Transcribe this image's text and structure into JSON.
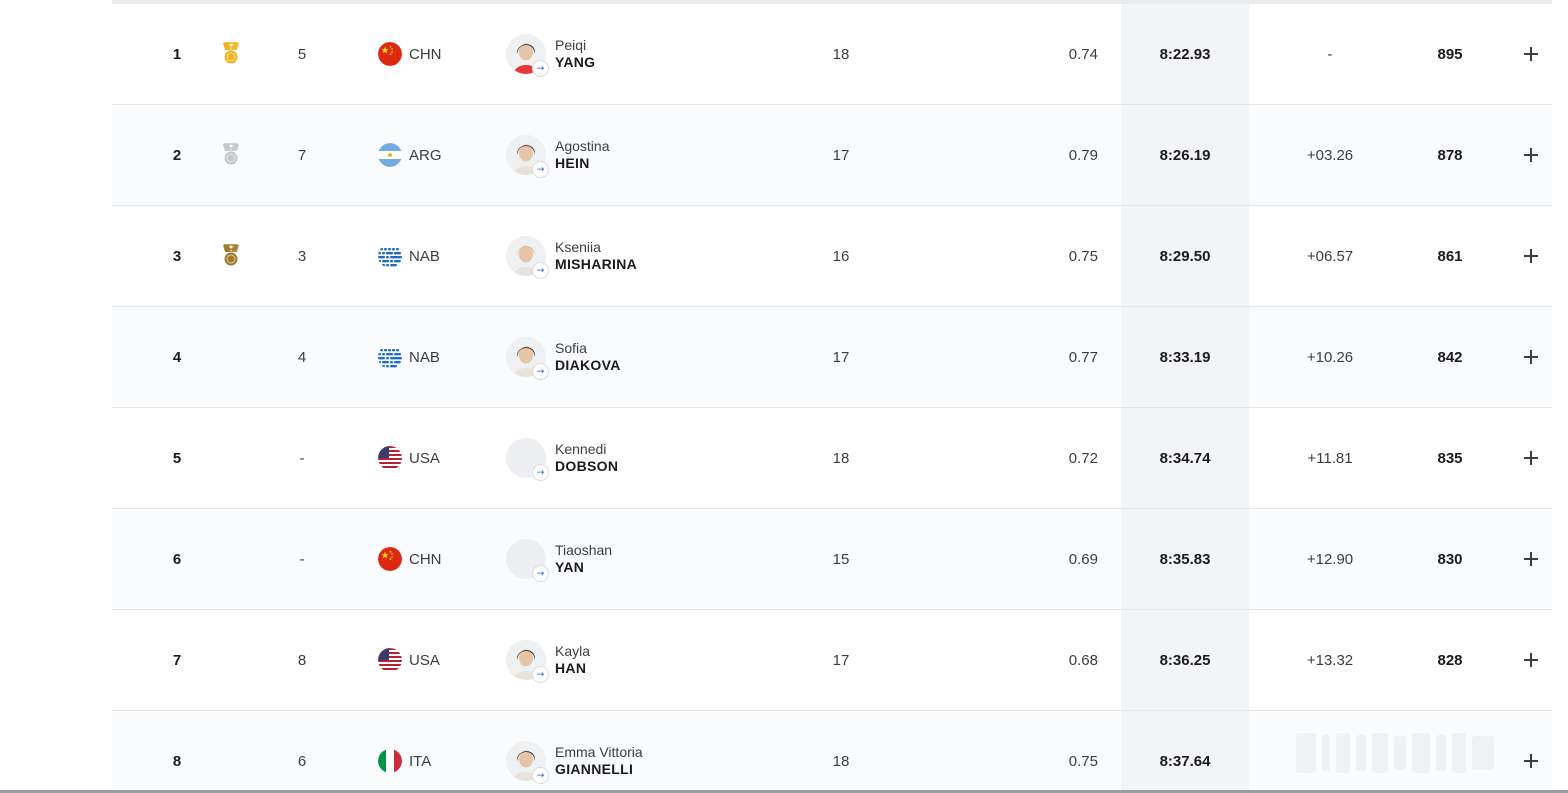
{
  "table": {
    "rows": [
      {
        "rank": "1",
        "medal": "gold",
        "heat": "5",
        "flag": "CHN",
        "noc": "CHN",
        "first": "Peiqi",
        "last": "YANG",
        "age": "18",
        "reaction": "0.74",
        "time": "8:22.93",
        "behind": "-",
        "points": "895",
        "has_photo": true
      },
      {
        "rank": "2",
        "medal": "silver",
        "heat": "7",
        "flag": "ARG",
        "noc": "ARG",
        "first": "Agostina",
        "last": "HEIN",
        "age": "17",
        "reaction": "0.79",
        "time": "8:26.19",
        "behind": "+03.26",
        "points": "878",
        "has_photo": true
      },
      {
        "rank": "3",
        "medal": "bronze",
        "heat": "3",
        "flag": "NAB",
        "noc": "NAB",
        "first": "Kseniia",
        "last": "MISHARINA",
        "age": "16",
        "reaction": "0.75",
        "time": "8:29.50",
        "behind": "+06.57",
        "points": "861",
        "has_photo": true
      },
      {
        "rank": "4",
        "medal": "",
        "heat": "4",
        "flag": "NAB",
        "noc": "NAB",
        "first": "Sofia",
        "last": "DIAKOVA",
        "age": "17",
        "reaction": "0.77",
        "time": "8:33.19",
        "behind": "+10.26",
        "points": "842",
        "has_photo": true
      },
      {
        "rank": "5",
        "medal": "",
        "heat": "-",
        "flag": "USA",
        "noc": "USA",
        "first": "Kennedi",
        "last": "DOBSON",
        "age": "18",
        "reaction": "0.72",
        "time": "8:34.74",
        "behind": "+11.81",
        "points": "835",
        "has_photo": false
      },
      {
        "rank": "6",
        "medal": "",
        "heat": "-",
        "flag": "CHN",
        "noc": "CHN",
        "first": "Tiaoshan",
        "last": "YAN",
        "age": "15",
        "reaction": "0.69",
        "time": "8:35.83",
        "behind": "+12.90",
        "points": "830",
        "has_photo": false
      },
      {
        "rank": "7",
        "medal": "",
        "heat": "8",
        "flag": "USA",
        "noc": "USA",
        "first": "Kayla",
        "last": "HAN",
        "age": "17",
        "reaction": "0.68",
        "time": "8:36.25",
        "behind": "+13.32",
        "points": "828",
        "has_photo": true
      },
      {
        "rank": "8",
        "medal": "",
        "heat": "6",
        "flag": "ITA",
        "noc": "ITA",
        "first": "Emma Vittoria",
        "last": "GIANNELLI",
        "age": "18",
        "reaction": "0.75",
        "time": "8:37.64",
        "behind": "",
        "points": "",
        "has_photo": true
      }
    ]
  },
  "colors": {
    "gold": "#f0b323",
    "silver": "#c4c6ca",
    "bronze": "#a07b2e",
    "link": "#2a5bd7",
    "time_column_bg": "#f3f4f6"
  },
  "icons": {
    "medal": "medal-icon",
    "expand": "plus-icon",
    "profile_link": "arrow-right-icon"
  }
}
